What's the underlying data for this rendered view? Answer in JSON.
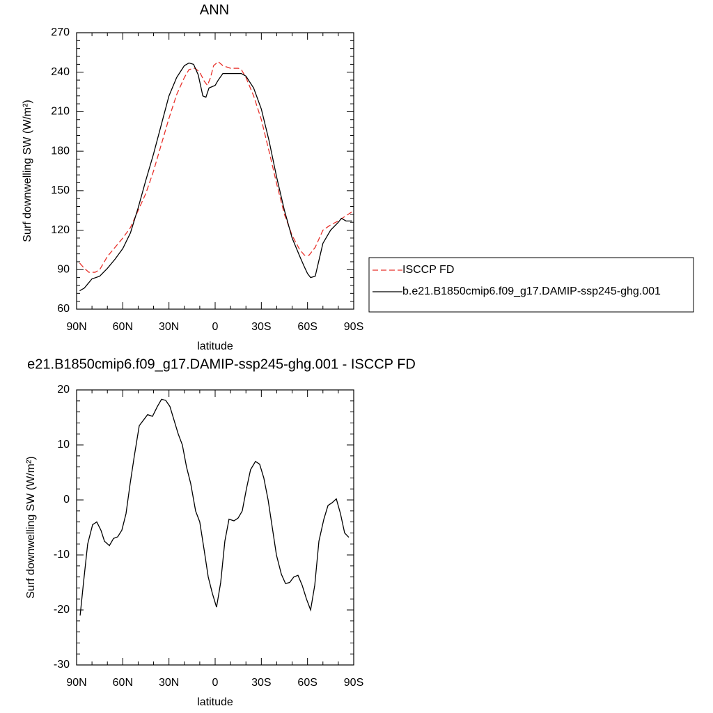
{
  "chart_data": [
    {
      "type": "line",
      "title": "ANN",
      "xlabel": "latitude",
      "ylabel": "Surf downwelling SW (W/m²)",
      "xlim": [
        90,
        -90
      ],
      "xticks": [
        {
          "value": 90,
          "label": "90N"
        },
        {
          "value": 60,
          "label": "60N"
        },
        {
          "value": 30,
          "label": "30N"
        },
        0,
        {
          "value": -30,
          "label": "30S"
        },
        {
          "value": -60,
          "label": "60S"
        },
        {
          "value": -90,
          "label": "90S"
        }
      ],
      "ylim": [
        60,
        270
      ],
      "yticks": [
        60,
        90,
        120,
        150,
        180,
        210,
        240,
        270
      ],
      "legend": "right",
      "series": [
        {
          "name": "ISCCP FD",
          "color": "#e8312b",
          "dash": true,
          "x": [
            88,
            85,
            82,
            78,
            75,
            70,
            65,
            60,
            55,
            50,
            45,
            40,
            35,
            30,
            25,
            20,
            17,
            13,
            10,
            7,
            5,
            3,
            1,
            -2,
            -5,
            -10,
            -15,
            -17,
            -20,
            -25,
            -30,
            -35,
            -40,
            -45,
            -50,
            -55,
            -58,
            -61,
            -65,
            -70,
            -75,
            -80,
            -85,
            -89
          ],
          "values": [
            95,
            91,
            88,
            88,
            90,
            100,
            107,
            114,
            122,
            135,
            148,
            165,
            185,
            205,
            223,
            236,
            242,
            243,
            240,
            233,
            230,
            236,
            245,
            248,
            245,
            243,
            243,
            242,
            236,
            222,
            204,
            180,
            155,
            132,
            116,
            105,
            101,
            101,
            107,
            120,
            124,
            127,
            131,
            134
          ]
        },
        {
          "name": "b.e21.B1850cmip6.f09_g17.DAMIP-ssp245-ghg.001",
          "color": "#000000",
          "dash": false,
          "x": [
            88,
            85,
            80,
            75,
            70,
            65,
            60,
            55,
            50,
            45,
            40,
            35,
            30,
            25,
            20,
            17,
            14,
            11,
            8,
            6,
            4,
            0,
            -2,
            -5,
            -10,
            -15,
            -17,
            -20,
            -25,
            -30,
            -35,
            -40,
            -45,
            -50,
            -55,
            -58,
            -60,
            -62,
            -65,
            -67,
            -70,
            -75,
            -80,
            -82,
            -85,
            -89
          ],
          "values": [
            74,
            76,
            83,
            85,
            91,
            98,
            106,
            118,
            137,
            158,
            178,
            200,
            222,
            236,
            245,
            247,
            246,
            238,
            222,
            221,
            228,
            230,
            234,
            239,
            239,
            239,
            239,
            237,
            228,
            212,
            188,
            160,
            135,
            114,
            100,
            92,
            87,
            84,
            85,
            95,
            110,
            120,
            126,
            129,
            127,
            127
          ]
        }
      ]
    },
    {
      "type": "line",
      "title": "e21.B1850cmip6.f09_g17.DAMIP-ssp245-ghg.001 - ISCCP FD",
      "xlabel": "latitude",
      "ylabel": "Surf downwelling SW (W/m²)",
      "xlim": [
        90,
        -90
      ],
      "xticks": [
        {
          "value": 90,
          "label": "90N"
        },
        {
          "value": 60,
          "label": "60N"
        },
        {
          "value": 30,
          "label": "30N"
        },
        0,
        {
          "value": -30,
          "label": "30S"
        },
        {
          "value": -60,
          "label": "60S"
        },
        {
          "value": -90,
          "label": "90S"
        }
      ],
      "ylim": [
        -30,
        20
      ],
      "yticks": [
        -30,
        -20,
        -10,
        0,
        10,
        20
      ],
      "color": "#000000",
      "x": [
        87.7,
        85.5,
        82.8,
        79.6,
        76.9,
        74.2,
        71.9,
        68.7,
        66,
        63.3,
        60.6,
        57.9,
        55.2,
        52.5,
        49.3,
        43.9,
        40.7,
        37.5,
        34.8,
        32.1,
        29.4,
        26.7,
        24,
        21.3,
        18.6,
        15.9,
        12.7,
        10,
        7.2,
        4.5,
        1.8,
        -0.9,
        -3.6,
        -6.3,
        -9,
        -12.2,
        -14.9,
        -17.6,
        -20.3,
        -23,
        -26.2,
        -28.9,
        -31.6,
        -34.4,
        -37.1,
        -39.8,
        -43,
        -45.7,
        -48.4,
        -51.1,
        -53.8,
        -56.5,
        -59.3,
        -62,
        -64.7,
        -67.4,
        -70.6,
        -73.3,
        -76,
        -78.7,
        -81.4,
        -84.1,
        -86.8
      ],
      "values": [
        -21,
        -15,
        -8,
        -4.5,
        -4,
        -5.5,
        -7.5,
        -8.3,
        -7,
        -6.7,
        -5.5,
        -2.5,
        3,
        8,
        13.5,
        15.5,
        15.2,
        17,
        18.3,
        18.1,
        17,
        14.5,
        12,
        10,
        6,
        3,
        -2,
        -4,
        -9,
        -14,
        -17,
        -19.5,
        -15,
        -7.5,
        -3.5,
        -3.8,
        -3.3,
        -2,
        2,
        5.5,
        7,
        6.5,
        4,
        0,
        -5,
        -10,
        -13.5,
        -15.2,
        -15,
        -14,
        -13.7,
        -15.5,
        -18,
        -20,
        -15.5,
        -7.5,
        -3.5,
        -1,
        -0.5,
        0.2,
        -2.5,
        -6,
        -6.8
      ]
    }
  ]
}
